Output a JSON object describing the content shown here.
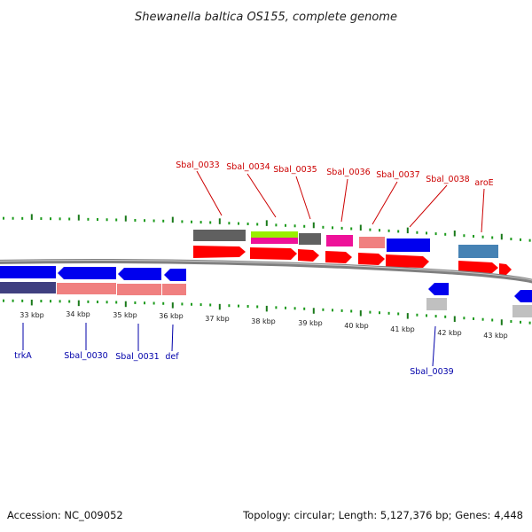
{
  "title": "Shewanella baltica OS155, complete genome",
  "footer": {
    "accession": "Accession: NC_009052",
    "topology": "Topology: circular; Length: 5,127,376 bp; Genes: 4,448"
  },
  "colors": {
    "backbone": "#909090",
    "cds_forward": "#ff0000",
    "cds_reverse": "#0000ee",
    "label_forward": "#cc0000",
    "label_reverse": "#0000aa",
    "tick_major": "#1a7a1a",
    "tick_minor": "#1a9a1a",
    "cog_dark_gray": "#606060",
    "cog_light_gray": "#c0c0c0",
    "cog_salmon": "#f08080",
    "cog_magenta": "#ee1199",
    "cog_blue": "#0000ee",
    "cog_navy": "#404080",
    "cog_steel": "#4682b4",
    "cog_lime": "#99ee00"
  },
  "ticks": [
    {
      "label": "33 kbp"
    },
    {
      "label": "34 kbp"
    },
    {
      "label": "35 kbp"
    },
    {
      "label": "36 kbp"
    },
    {
      "label": "37 kbp"
    },
    {
      "label": "38 kbp"
    },
    {
      "label": "39 kbp"
    },
    {
      "label": "40 kbp"
    },
    {
      "label": "41 kbp"
    },
    {
      "label": "42 kbp"
    },
    {
      "label": "43 kbp"
    }
  ],
  "genes_forward": [
    {
      "label": "Sbal_0033"
    },
    {
      "label": "Sbal_0034"
    },
    {
      "label": "Sbal_0035"
    },
    {
      "label": "Sbal_0036"
    },
    {
      "label": "Sbal_0037"
    },
    {
      "label": "Sbal_0038"
    },
    {
      "label": "aroE"
    }
  ],
  "genes_reverse": [
    {
      "label": "trkA"
    },
    {
      "label": "Sbal_0030"
    },
    {
      "label": "Sbal_0031"
    },
    {
      "label": "def"
    },
    {
      "label": "Sbal_0039"
    }
  ]
}
